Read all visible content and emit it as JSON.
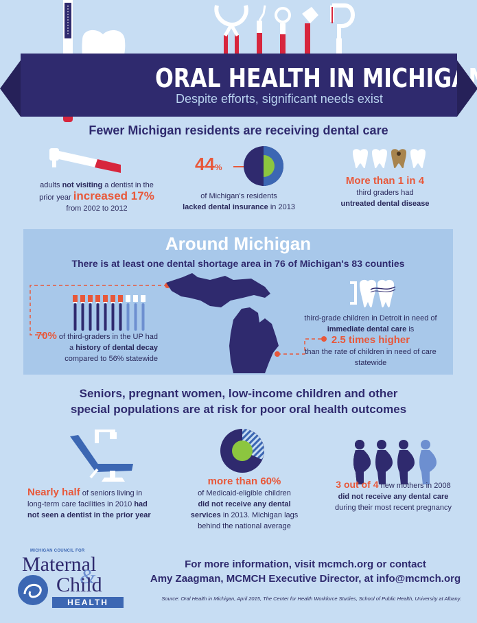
{
  "header": {
    "title": "ORAL HEALTH IN MICHIGAN",
    "subtitle": "Despite efforts, significant needs exist"
  },
  "section1": {
    "heading": "Fewer Michigan residents are receiving dental care",
    "stat_left": {
      "pre": "adults",
      "bold1": "not visiting",
      "mid": "a dentist in the prior year",
      "highlight": "increased 17%",
      "post": "from 2002 to 2012"
    },
    "stat_mid": {
      "value": "44",
      "unit": "%",
      "line1": "of Michigan's residents",
      "bold": "lacked dental insurance",
      "post": "in 2013"
    },
    "stat_right": {
      "highlight": "More than 1 in 4",
      "line1": "third graders had",
      "bold": "untreated dental disease"
    }
  },
  "around": {
    "title": "Around Michigan",
    "subtitle": "There is at least one dental shortage area in 76 of Michigan's 83 counties",
    "left": {
      "value": "70%",
      "pre": "of third-graders in the UP had a",
      "bold": "history of dental decay",
      "post": "compared to 56% statewide"
    },
    "right": {
      "line1": "third-grade children in Detroit in need of",
      "bold": "immediate dental care",
      "mid": "is",
      "highlight": "2.5 times higher",
      "post": "than the rate of children in need of care statewide"
    }
  },
  "section3": {
    "heading_line1": "Seniors, pregnant women, low-income children and other",
    "heading_line2": "special populations are at risk for poor oral health outcomes",
    "left": {
      "highlight": "Nearly half",
      "pre": "of seniors living in long-term care facilities in 2010",
      "bold": "had not seen a dentist in the prior year"
    },
    "mid": {
      "highlight": "more than 60%",
      "pre": "of Medicaid-eligible children",
      "bold": "did not receive any dental services",
      "post": "in 2013. Michigan lags behind the national average"
    },
    "right": {
      "highlight": "3 out of 4",
      "pre": "new mothers in 2008",
      "bold": "did not receive any dental care",
      "post": "during their most recent pregnancy"
    }
  },
  "footer": {
    "logo_top": "MICHIGAN COUNCIL FOR",
    "logo_line1": "Maternal",
    "logo_amp": "&",
    "logo_line2": "Child",
    "logo_band": "HEALTH",
    "info_line1": "For more information, visit mcmch.org or contact",
    "info_line2": "Amy Zaagman, MCMCH Executive Director, at info@mcmch.org",
    "source": "Source: Oral Health in Michigan, April 2015, The Center for Health Workforce Studies, School of Public Health, University at Albany."
  },
  "colors": {
    "background": "#c7ddf3",
    "navy": "#2f2a6e",
    "accent": "#e8583a",
    "green": "#8cc63f",
    "red": "#d7263d",
    "panel": "#a8c8ea"
  },
  "icons": [
    "toothbrush-icon",
    "tooth-icon",
    "dental-tools-icon",
    "drill-icon",
    "pie-chart-icon",
    "teeth-icon",
    "michigan-map-icon",
    "toothbrushes-icon",
    "floss-teeth-icon",
    "dental-chair-icon",
    "donut-chart-icon",
    "pregnant-women-icon"
  ]
}
